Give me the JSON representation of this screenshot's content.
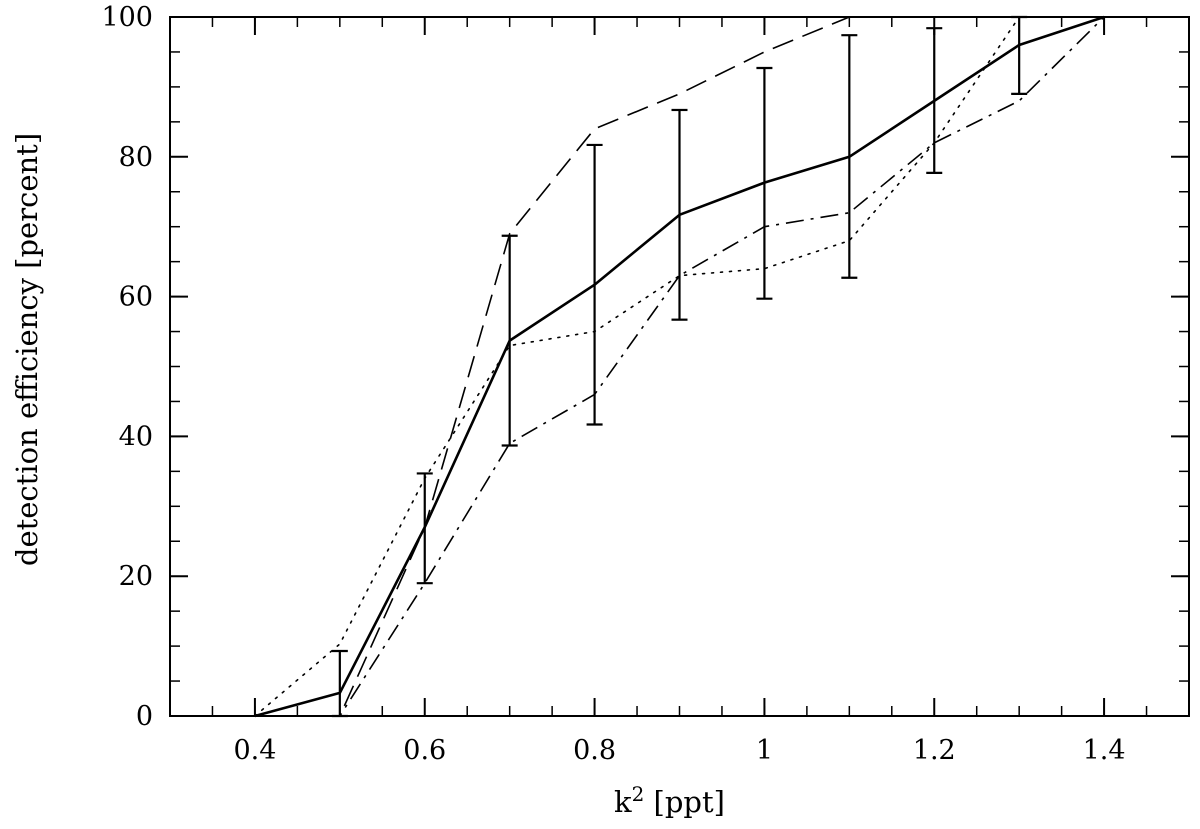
{
  "chart_data": {
    "type": "line",
    "title": "",
    "xlabel": "k",
    "xlabel_sup": "2",
    "xlabel_unit": "[ppt]",
    "ylabel": "detection efficiency [percent]",
    "xlim": [
      0.3,
      1.5
    ],
    "ylim": [
      0,
      100
    ],
    "x_ticks": [
      0.4,
      0.6,
      0.8,
      1,
      1.2,
      1.4
    ],
    "x_tick_labels": [
      "0.4",
      "0.6",
      "0.8",
      "1",
      "1.2",
      "1.4"
    ],
    "x_minor_step": 0.05,
    "y_ticks": [
      0,
      20,
      40,
      60,
      80,
      100
    ],
    "y_tick_labels": [
      "0",
      "20",
      "40",
      "60",
      "80",
      "100"
    ],
    "y_minor_step": 5,
    "grid": false,
    "x": [
      0.4,
      0.5,
      0.6,
      0.7,
      0.8,
      0.9,
      1.0,
      1.1,
      1.2,
      1.3,
      1.4
    ],
    "series": [
      {
        "style": "solid",
        "color": "#000000",
        "values": [
          0,
          3.3,
          27,
          53.7,
          61.7,
          71.7,
          76.3,
          80,
          88,
          96,
          100
        ],
        "err_low": [
          null,
          0,
          19,
          38.7,
          41.7,
          56.7,
          59.7,
          62.7,
          77.7,
          89,
          null
        ],
        "err_high": [
          null,
          9.3,
          34.7,
          68.7,
          81.7,
          86.7,
          92.7,
          97.4,
          98.4,
          100,
          null
        ]
      },
      {
        "style": "dashed",
        "color": "#000000",
        "values": [
          0,
          0,
          27,
          69,
          84,
          89,
          95,
          100,
          100,
          100,
          100
        ]
      },
      {
        "style": "dotted",
        "color": "#000000",
        "values": [
          0,
          10.3,
          34,
          53,
          55,
          63,
          64,
          68,
          82,
          100,
          100
        ]
      },
      {
        "style": "dash-dot",
        "color": "#000000",
        "values": [
          0,
          0,
          19,
          39,
          46,
          63,
          70,
          72,
          82,
          88,
          100
        ]
      }
    ]
  }
}
